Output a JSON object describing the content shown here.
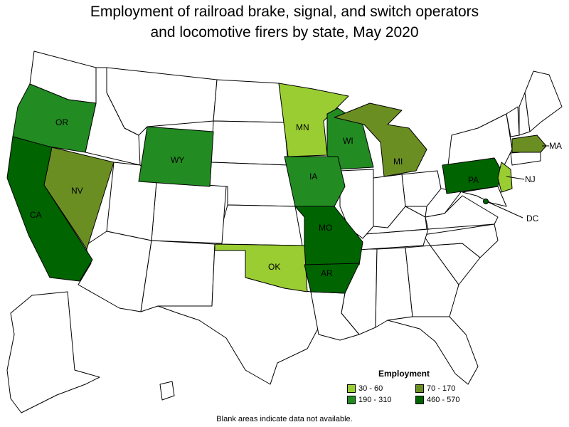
{
  "title_line1": "Employment of railroad brake, signal, and switch operators",
  "title_line2": "and locomotive firers by state, May 2020",
  "legend": {
    "title": "Employment",
    "items": [
      {
        "label": "30 - 60",
        "color": "#9acd32"
      },
      {
        "label": "70 - 170",
        "color": "#6b8e23"
      },
      {
        "label": "190 - 310",
        "color": "#228b22"
      },
      {
        "label": "460 - 570",
        "color": "#006400"
      }
    ]
  },
  "note": "Blank areas indicate data not available.",
  "colors": {
    "blank": "#ffffff",
    "border": "#000000"
  },
  "states": [
    {
      "code": "CA",
      "category": "460 - 570"
    },
    {
      "code": "OR",
      "category": "190 - 310"
    },
    {
      "code": "NV",
      "category": "70 - 170"
    },
    {
      "code": "WY",
      "category": "190 - 310"
    },
    {
      "code": "MN",
      "category": "30 - 60"
    },
    {
      "code": "WI",
      "category": "190 - 310"
    },
    {
      "code": "MI",
      "category": "70 - 170"
    },
    {
      "code": "IA",
      "category": "190 - 310"
    },
    {
      "code": "MO",
      "category": "460 - 570"
    },
    {
      "code": "OK",
      "category": "30 - 60"
    },
    {
      "code": "AR",
      "category": "460 - 570"
    },
    {
      "code": "PA",
      "category": "460 - 570"
    },
    {
      "code": "NJ",
      "category": "30 - 60"
    },
    {
      "code": "MA",
      "category": "70 - 170"
    },
    {
      "code": "DC",
      "category": "460 - 570"
    }
  ]
}
